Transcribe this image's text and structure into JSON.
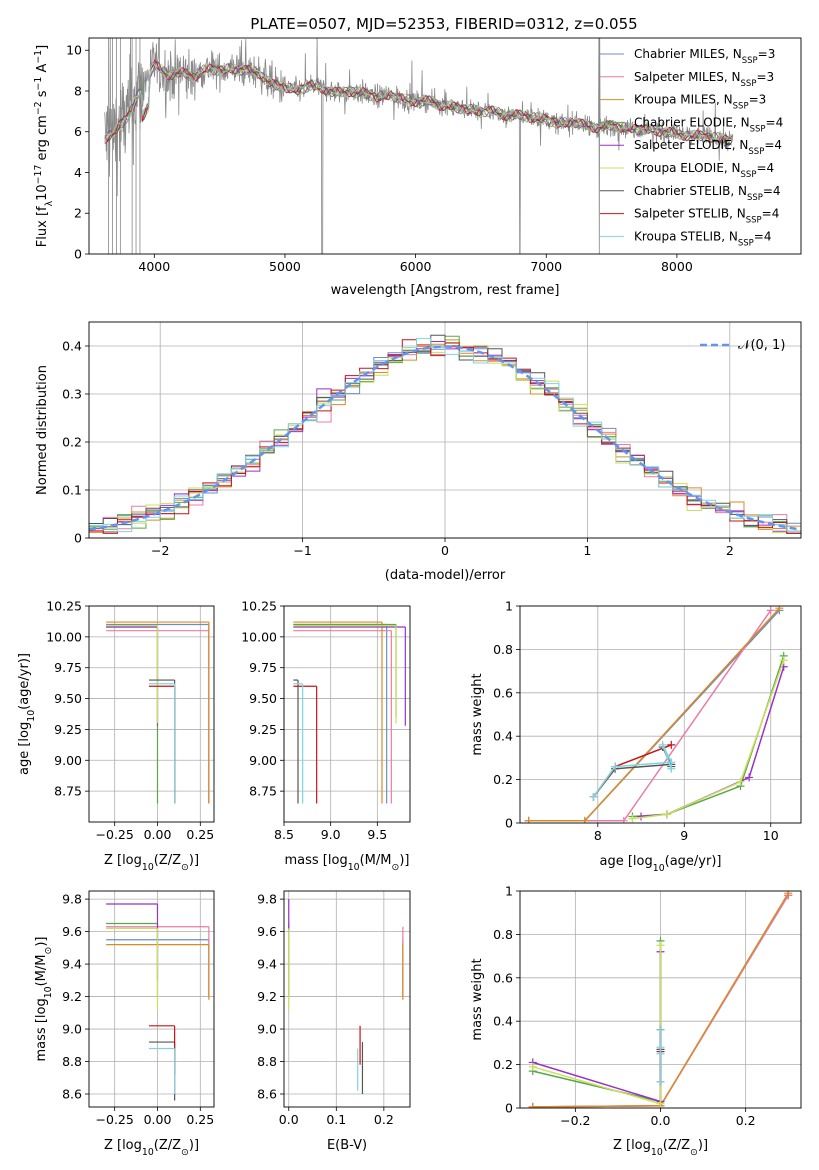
{
  "colors": {
    "Chabrier MILES": "#6c8ebf",
    "Salpeter MILES": "#e87ca8",
    "Kroupa MILES": "#d98a2b",
    "Chabrier ELODIE": "#5aa74a",
    "Salpeter ELODIE": "#9b30c8",
    "Kroupa ELODIE": "#c8e05a",
    "Chabrier STELIB": "#555555",
    "Salpeter STELIB": "#c81414",
    "Kroupa STELIB": "#7fd4e0",
    "data": "#888888",
    "normal": "#6495ed",
    "orange_line": "#e0782f"
  },
  "chart_data": [
    {
      "id": "spectrum",
      "type": "line",
      "title": "PLATE=0507, MJD=52353, FIBERID=0312, z=0.055",
      "xlabel": "wavelength [Angstrom, rest frame]",
      "ylabel": "Flux [f$_\\lambda$10$^{-17}$ erg cm$^{-2}$ s$^{-1}$ A$^{-1}$]",
      "xlim": [
        3500,
        8950
      ],
      "ylim": [
        0,
        10.6
      ],
      "xticks": [
        4000,
        5000,
        6000,
        7000,
        8000
      ],
      "yticks": [
        0,
        2,
        4,
        6,
        8,
        10
      ],
      "legend_position": "top-right",
      "legend": [
        {
          "name": "Chabrier MILES",
          "label": "Chabrier MILES, N",
          "sub": "SSP",
          "tail": "=3"
        },
        {
          "name": "Salpeter MILES",
          "label": "Salpeter MILES, N",
          "sub": "SSP",
          "tail": "=3"
        },
        {
          "name": "Kroupa MILES",
          "label": "Kroupa MILES, N",
          "sub": "SSP",
          "tail": "=3"
        },
        {
          "name": "Chabrier ELODIE",
          "label": "Chabrier ELODIE, N",
          "sub": "SSP",
          "tail": "=4"
        },
        {
          "name": "Salpeter ELODIE",
          "label": "Salpeter ELODIE, N",
          "sub": "SSP",
          "tail": "=4"
        },
        {
          "name": "Kroupa ELODIE",
          "label": "Kroupa ELODIE, N",
          "sub": "SSP",
          "tail": "=4"
        },
        {
          "name": "Chabrier STELIB",
          "label": "Chabrier STELIB, N",
          "sub": "SSP",
          "tail": "=4"
        },
        {
          "name": "Salpeter STELIB",
          "label": "Salpeter STELIB, N",
          "sub": "SSP",
          "tail": "=4"
        },
        {
          "name": "Kroupa STELIB",
          "label": "Kroupa STELIB, N",
          "sub": "SSP",
          "tail": "=4"
        }
      ],
      "continuum": {
        "x": [
          3600,
          3700,
          3800,
          3900,
          4000,
          4100,
          4200,
          4300,
          4400,
          4500,
          4600,
          4700,
          4800,
          4900,
          5000,
          5100,
          5200,
          5300,
          5400,
          5500,
          5600,
          5700,
          5800,
          5900,
          6000,
          6100,
          6200,
          6300,
          6400,
          6500,
          6600,
          6700,
          6800,
          6900,
          7000,
          7100,
          7200,
          7300,
          7400,
          7500,
          7600,
          7700,
          7800,
          7900,
          8000,
          8100,
          8200,
          8300,
          8400,
          8500,
          8600,
          8700,
          8800,
          8900
        ],
        "y": [
          5.6,
          6.0,
          6.8,
          8.1,
          9.3,
          8.8,
          8.9,
          8.7,
          9.1,
          9.0,
          9.1,
          9.0,
          8.9,
          8.3,
          8.2,
          8.0,
          8.3,
          8.1,
          7.9,
          8.0,
          7.9,
          7.7,
          7.8,
          7.6,
          7.5,
          7.5,
          7.3,
          7.2,
          7.1,
          7.0,
          7.0,
          6.8,
          6.8,
          6.7,
          6.6,
          6.4,
          6.5,
          6.3,
          6.2,
          6.3,
          6.2,
          6.1,
          6.1,
          6.0,
          5.9,
          5.8,
          5.8,
          5.7,
          5.6,
          5.6,
          5.5,
          5.5,
          5.4,
          5.4
        ]
      },
      "model_range": [
        3620,
        8430
      ]
    },
    {
      "id": "residuals",
      "type": "line",
      "xlabel": "(data-model)/error",
      "ylabel": "Normed distribution",
      "xlim": [
        -2.5,
        2.5
      ],
      "ylim": [
        0,
        0.45
      ],
      "xticks": [
        -2,
        -1,
        0,
        1,
        2
      ],
      "yticks": [
        0.0,
        0.1,
        0.2,
        0.3,
        0.4
      ],
      "legend_position": "top-right",
      "normal_label": "𝒩(0, 1)",
      "bin_edges_start": -2.5,
      "bin_width": 0.1
    },
    {
      "id": "age_vs_Z",
      "type": "scatter",
      "xlabel": "Z [log$_{10}$(Z/Z$_\\odot$)]",
      "ylabel": "age  [log$_{10}$(age/yr)]",
      "xlim": [
        -0.4,
        0.33
      ],
      "ylim": [
        8.5,
        10.25
      ],
      "xticks": [
        -0.25,
        0.0,
        0.25
      ],
      "xticklabels": [
        "−0.25",
        "0.00",
        "0.25"
      ],
      "yticks": [
        8.75,
        9.0,
        9.25,
        9.5,
        9.75,
        10.0,
        10.25
      ],
      "yticklabels": [
        "8.75",
        "9.00",
        "9.25",
        "9.50",
        "9.75",
        "10.00",
        "10.25"
      ]
    },
    {
      "id": "age_vs_mass",
      "type": "scatter",
      "xlabel": "mass [log$_{10}$(M/M$_\\odot$)]",
      "xlim": [
        8.5,
        9.85
      ],
      "ylim": [
        8.5,
        10.25
      ],
      "xticks": [
        8.5,
        9.0,
        9.5
      ],
      "xticklabels": [
        "8.5",
        "9.0",
        "9.5"
      ],
      "yticks": [
        8.75,
        9.0,
        9.25,
        9.5,
        9.75,
        10.0,
        10.25
      ],
      "yticklabels": [
        "8.75",
        "9.00",
        "9.25",
        "9.50",
        "9.75",
        "10.00",
        "10.25"
      ]
    },
    {
      "id": "massweight_vs_age",
      "type": "line",
      "xlabel": "age  [log$_{10}$(age/yr)]",
      "ylabel": "mass weight",
      "xlim": [
        7.1,
        10.35
      ],
      "ylim": [
        0,
        1.0
      ],
      "xticks": [
        8,
        9,
        10
      ],
      "yticks": [
        0.0,
        0.2,
        0.4,
        0.6,
        0.8,
        1.0
      ],
      "series": [
        {
          "name": "Chabrier MILES",
          "x": [
            7.2,
            7.85,
            10.1
          ],
          "y": [
            0.01,
            0.01,
            0.98
          ]
        },
        {
          "name": "Salpeter MILES",
          "x": [
            7.2,
            8.3,
            10.0
          ],
          "y": [
            0.01,
            0.01,
            0.98
          ]
        },
        {
          "name": "Kroupa MILES",
          "x": [
            7.2,
            7.85,
            10.1
          ],
          "y": [
            0.01,
            0.01,
            0.99
          ]
        },
        {
          "name": "Chabrier ELODIE",
          "x": [
            8.4,
            8.8,
            9.65,
            10.15
          ],
          "y": [
            0.03,
            0.04,
            0.17,
            0.77
          ]
        },
        {
          "name": "Salpeter ELODIE",
          "x": [
            8.5,
            8.8,
            9.75,
            10.15
          ],
          "y": [
            0.03,
            0.04,
            0.21,
            0.72
          ]
        },
        {
          "name": "Kroupa ELODIE",
          "x": [
            8.4,
            8.8,
            9.65,
            10.15
          ],
          "y": [
            0.02,
            0.04,
            0.19,
            0.75
          ]
        },
        {
          "name": "Chabrier STELIB",
          "x": [
            7.95,
            8.2,
            8.85,
            8.75,
            8.85
          ],
          "y": [
            0.12,
            0.25,
            0.27,
            0.35,
            0.26
          ]
        },
        {
          "name": "Salpeter STELIB",
          "x": [
            7.95,
            8.2,
            8.85
          ],
          "y": [
            0.12,
            0.26,
            0.36
          ]
        },
        {
          "name": "Kroupa STELIB",
          "x": [
            7.95,
            8.2,
            8.85,
            8.75,
            8.85
          ],
          "y": [
            0.12,
            0.26,
            0.28,
            0.36,
            0.25
          ]
        }
      ]
    },
    {
      "id": "mass_vs_Z",
      "type": "scatter",
      "xlabel": "Z [log$_{10}$(Z/Z$_\\odot$)]",
      "ylabel": "mass [log$_{10}$(M/M$_\\odot$)]",
      "xlim": [
        -0.4,
        0.33
      ],
      "ylim": [
        8.52,
        9.85
      ],
      "xticks": [
        -0.25,
        0.0,
        0.25
      ],
      "xticklabels": [
        "−0.25",
        "0.00",
        "0.25"
      ],
      "yticks": [
        8.6,
        8.8,
        9.0,
        9.2,
        9.4,
        9.6,
        9.8
      ],
      "yticklabels": [
        "8.6",
        "8.8",
        "9.0",
        "9.2",
        "9.4",
        "9.6",
        "9.8"
      ]
    },
    {
      "id": "mass_vs_EBV",
      "type": "scatter",
      "xlabel": "E(B-V)",
      "xlim": [
        -0.01,
        0.255
      ],
      "ylim": [
        8.52,
        9.85
      ],
      "xticks": [
        0.0,
        0.1,
        0.2
      ],
      "xticklabels": [
        "0.0",
        "0.1",
        "0.2"
      ],
      "yticks": [
        8.6,
        8.8,
        9.0,
        9.2,
        9.4,
        9.6,
        9.8
      ],
      "yticklabels": [
        "8.6",
        "8.8",
        "9.0",
        "9.2",
        "9.4",
        "9.6",
        "9.8"
      ]
    },
    {
      "id": "massweight_vs_Z",
      "type": "line",
      "xlabel": "Z [log$_{10}$(Z/Z$_\\odot$)]",
      "ylabel": "mass weight",
      "xlim": [
        -0.33,
        0.33
      ],
      "ylim": [
        0,
        1.0
      ],
      "xticks": [
        -0.2,
        0.0,
        0.2
      ],
      "xticklabels": [
        "−0.2",
        "0.0",
        "0.2"
      ],
      "yticks": [
        0.0,
        0.2,
        0.4,
        0.6,
        0.8,
        1.0
      ],
      "series": [
        {
          "name": "Chabrier MILES",
          "x": [
            -0.3,
            0.0,
            0.3
          ],
          "y": [
            0.005,
            0.01,
            0.98
          ]
        },
        {
          "name": "Salpeter MILES",
          "x": [
            -0.3,
            0.0,
            0.3
          ],
          "y": [
            0.005,
            0.01,
            0.98
          ]
        },
        {
          "name": "Kroupa MILES",
          "x": [
            -0.3,
            0.0,
            0.3
          ],
          "y": [
            0.005,
            0.01,
            0.99
          ]
        },
        {
          "name": "Chabrier ELODIE",
          "x": [
            -0.3,
            0.0,
            0.0
          ],
          "y": [
            0.17,
            0.03,
            0.77
          ]
        },
        {
          "name": "Salpeter ELODIE",
          "x": [
            -0.3,
            0.0,
            0.0
          ],
          "y": [
            0.21,
            0.03,
            0.72
          ]
        },
        {
          "name": "Kroupa ELODIE",
          "x": [
            -0.3,
            0.0,
            0.0
          ],
          "y": [
            0.19,
            0.02,
            0.75
          ]
        },
        {
          "name": "Chabrier STELIB",
          "x": [
            0.0,
            0.0,
            0.0,
            0.0
          ],
          "y": [
            0.12,
            0.26,
            0.36,
            0.27
          ]
        },
        {
          "name": "Salpeter STELIB",
          "x": [
            0.0,
            0.0,
            0.0
          ],
          "y": [
            0.12,
            0.26,
            0.36
          ]
        },
        {
          "name": "Kroupa STELIB",
          "x": [
            0.0,
            0.0,
            0.0,
            0.0
          ],
          "y": [
            0.12,
            0.25,
            0.36,
            0.28
          ]
        }
      ]
    }
  ],
  "ranges": {
    "age_vs_Z": [
      {
        "name": "Chabrier MILES",
        "xr": [
          -0.3,
          0.3
        ],
        "yr": [
          8.65,
          10.1
        ]
      },
      {
        "name": "Salpeter MILES",
        "xr": [
          -0.3,
          0.3
        ],
        "yr": [
          8.65,
          10.05
        ]
      },
      {
        "name": "Kroupa MILES",
        "xr": [
          -0.3,
          0.3
        ],
        "yr": [
          8.65,
          10.12
        ]
      },
      {
        "name": "Chabrier ELODIE",
        "xr": [
          -0.3,
          0.0
        ],
        "yr": [
          8.65,
          10.08
        ]
      },
      {
        "name": "Salpeter ELODIE",
        "xr": [
          -0.3,
          0.0
        ],
        "yr": [
          9.28,
          10.08
        ]
      },
      {
        "name": "Kroupa ELODIE",
        "xr": [
          -0.3,
          0.0
        ],
        "yr": [
          9.3,
          10.09
        ]
      },
      {
        "name": "Chabrier STELIB",
        "xr": [
          -0.05,
          0.1
        ],
        "yr": [
          8.65,
          9.65
        ]
      },
      {
        "name": "Salpeter STELIB",
        "xr": [
          -0.05,
          0.1
        ],
        "yr": [
          8.65,
          9.6
        ]
      },
      {
        "name": "Kroupa STELIB",
        "xr": [
          -0.05,
          0.1
        ],
        "yr": [
          8.65,
          9.62
        ]
      }
    ],
    "age_vs_mass": [
      {
        "name": "Chabrier MILES",
        "xr": [
          8.6,
          9.6
        ],
        "yr": [
          8.65,
          10.1
        ]
      },
      {
        "name": "Salpeter MILES",
        "xr": [
          8.6,
          9.65
        ],
        "yr": [
          8.65,
          10.05
        ]
      },
      {
        "name": "Kroupa MILES",
        "xr": [
          8.6,
          9.55
        ],
        "yr": [
          8.65,
          10.12
        ]
      },
      {
        "name": "Chabrier ELODIE",
        "xr": [
          8.6,
          9.7
        ],
        "yr": [
          9.35,
          10.1
        ]
      },
      {
        "name": "Salpeter ELODIE",
        "xr": [
          8.6,
          9.8
        ],
        "yr": [
          9.28,
          10.08
        ]
      },
      {
        "name": "Kroupa ELODIE",
        "xr": [
          8.6,
          9.7
        ],
        "yr": [
          9.3,
          10.09
        ]
      },
      {
        "name": "Chabrier STELIB",
        "xr": [
          8.6,
          8.65
        ],
        "yr": [
          8.65,
          9.65
        ]
      },
      {
        "name": "Salpeter STELIB",
        "xr": [
          8.6,
          8.85
        ],
        "yr": [
          8.65,
          9.6
        ]
      },
      {
        "name": "Kroupa STELIB",
        "xr": [
          8.6,
          8.7
        ],
        "yr": [
          8.65,
          9.62
        ]
      }
    ],
    "mass_vs_Z": [
      {
        "name": "Chabrier MILES",
        "xr": [
          -0.3,
          0.3
        ],
        "yr": [
          9.2,
          9.55
        ]
      },
      {
        "name": "Salpeter MILES",
        "xr": [
          -0.3,
          0.3
        ],
        "yr": [
          9.2,
          9.63
        ]
      },
      {
        "name": "Kroupa MILES",
        "xr": [
          -0.3,
          0.3
        ],
        "yr": [
          9.18,
          9.52
        ]
      },
      {
        "name": "Chabrier ELODIE",
        "xr": [
          -0.3,
          0.0
        ],
        "yr": [
          9.2,
          9.65
        ]
      },
      {
        "name": "Salpeter ELODIE",
        "xr": [
          -0.3,
          0.0
        ],
        "yr": [
          9.3,
          9.77
        ]
      },
      {
        "name": "Kroupa ELODIE",
        "xr": [
          -0.3,
          0.0
        ],
        "yr": [
          9.12,
          9.62
        ]
      },
      {
        "name": "Chabrier STELIB",
        "xr": [
          -0.05,
          0.1
        ],
        "yr": [
          8.56,
          8.92
        ]
      },
      {
        "name": "Salpeter STELIB",
        "xr": [
          -0.05,
          0.1
        ],
        "yr": [
          8.72,
          9.02
        ]
      },
      {
        "name": "Kroupa STELIB",
        "xr": [
          -0.05,
          0.1
        ],
        "yr": [
          8.6,
          8.88
        ]
      }
    ],
    "mass_vs_EBV": [
      {
        "name": "Chabrier MILES",
        "xr": [
          0.24,
          0.24
        ],
        "yr": [
          9.2,
          9.55
        ]
      },
      {
        "name": "Salpeter MILES",
        "xr": [
          0.24,
          0.24
        ],
        "yr": [
          9.2,
          9.63
        ]
      },
      {
        "name": "Kroupa MILES",
        "xr": [
          0.24,
          0.24
        ],
        "yr": [
          9.18,
          9.52
        ]
      },
      {
        "name": "Chabrier ELODIE",
        "xr": [
          0.0,
          0.0
        ],
        "yr": [
          9.2,
          9.65
        ]
      },
      {
        "name": "Salpeter ELODIE",
        "xr": [
          0.0,
          0.0
        ],
        "yr": [
          9.6,
          9.8
        ]
      },
      {
        "name": "Kroupa ELODIE",
        "xr": [
          0.0,
          0.0
        ],
        "yr": [
          9.12,
          9.62
        ]
      },
      {
        "name": "Chabrier STELIB",
        "xr": [
          0.155,
          0.155
        ],
        "yr": [
          8.6,
          8.92
        ]
      },
      {
        "name": "Salpeter STELIB",
        "xr": [
          0.15,
          0.15
        ],
        "yr": [
          8.78,
          9.02
        ]
      },
      {
        "name": "Kroupa STELIB",
        "xr": [
          0.145,
          0.145
        ],
        "yr": [
          8.62,
          8.88
        ]
      }
    ]
  }
}
